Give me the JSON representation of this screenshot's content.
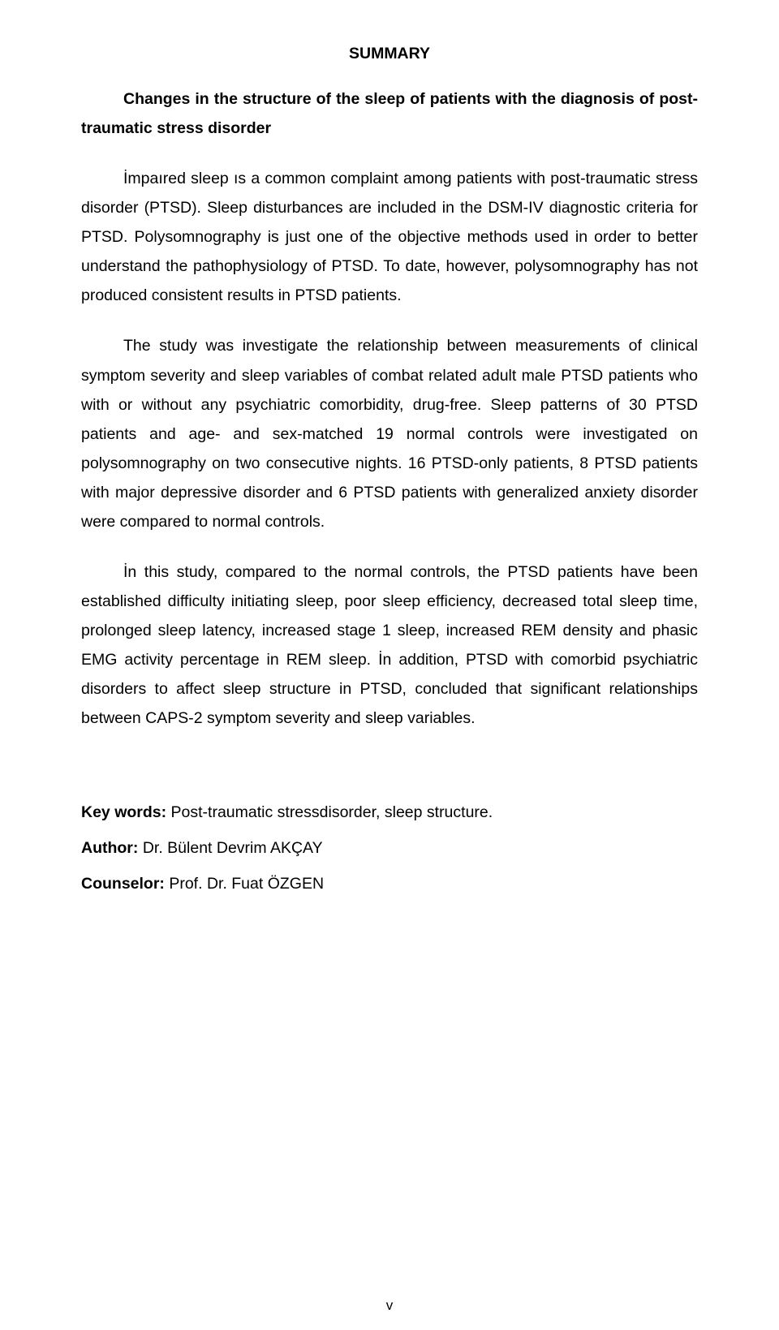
{
  "heading": "SUMMARY",
  "subtitle": "Changes in the structure of the sleep of patients with the diagnosis of post-traumatic stress disorder",
  "paragraphs": [
    "İmpaıred sleep ıs a common complaint among patients with post-traumatic stress disorder (PTSD). Sleep disturbances are included in the DSM-IV diagnostic criteria for PTSD. Polysomnography is just one of the objective methods used in order to better understand the pathophysiology of PTSD. To date, however, polysomnography has not produced consistent results in PTSD patients.",
    "The study was investigate the relationship between measurements of clinical symptom severity and sleep variables of combat related adult male PTSD patients who with or without any psychiatric comorbidity, drug-free. Sleep patterns of 30 PTSD patients and age- and sex-matched 19 normal controls were investigated on polysomnography on two consecutive nights. 16 PTSD-only patients, 8 PTSD patients with major depressive disorder and 6 PTSD patients with generalized anxiety disorder were compared to normal controls.",
    "İn this study, compared to the normal controls, the PTSD patients have been established difficulty initiating sleep, poor sleep efficiency, decreased total sleep time, prolonged sleep latency, increased stage 1 sleep, increased REM density and phasic EMG activity percentage in REM sleep. İn addition, PTSD with comorbid psychiatric disorders to affect sleep structure in PTSD, concluded that significant relationships between CAPS-2 symptom severity and sleep variables."
  ],
  "metadata": {
    "keywords_label": "Key words:",
    "keywords_value": " Post-traumatic stressdisorder, sleep structure.",
    "author_label": "Author:",
    "author_value": " Dr. Bülent Devrim AKÇAY",
    "counselor_label": "Counselor:",
    "counselor_value": " Prof. Dr. Fuat ÖZGEN"
  },
  "page_number": "v"
}
